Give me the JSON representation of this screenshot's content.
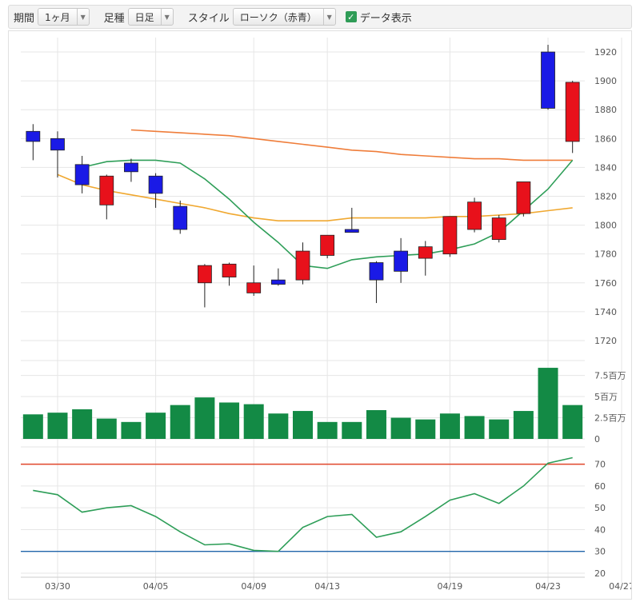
{
  "toolbar": {
    "period_label": "期間",
    "period_value": "1ヶ月",
    "bar_label": "足種",
    "bar_value": "日足",
    "style_label": "スタイル",
    "style_value": "ローソク（赤青）",
    "data_display_label": "データ表示",
    "data_display_checked": true
  },
  "colors": {
    "up": "#e8111b",
    "down": "#1a1ae6",
    "ma_short": "#2e9e58",
    "ma_mid": "#f0a830",
    "ma_long": "#ef7d3a",
    "volume": "#138a45",
    "rsi": "#2e9e58",
    "rsi_upper": "#e0452a",
    "rsi_lower": "#2266aa"
  },
  "chart_data": [
    {
      "type": "candlestick",
      "x_labels": [
        "03/30",
        "04/05",
        "04/09",
        "04/13",
        "04/19",
        "04/23",
        "04/27"
      ],
      "x_label_index": [
        1,
        5,
        9,
        12,
        17,
        21,
        24
      ],
      "yticks": [
        1720,
        1740,
        1760,
        1780,
        1800,
        1820,
        1840,
        1860,
        1880,
        1900,
        1920
      ],
      "ylim": [
        1710,
        1930
      ],
      "candles": [
        {
          "o": 1865,
          "h": 1870,
          "l": 1845,
          "c": 1858
        },
        {
          "o": 1860,
          "h": 1865,
          "l": 1833,
          "c": 1852
        },
        {
          "o": 1842,
          "h": 1848,
          "l": 1822,
          "c": 1828
        },
        {
          "o": 1814,
          "h": 1835,
          "l": 1804,
          "c": 1834
        },
        {
          "o": 1843,
          "h": 1846,
          "l": 1830,
          "c": 1837
        },
        {
          "o": 1834,
          "h": 1836,
          "l": 1812,
          "c": 1822
        },
        {
          "o": 1813,
          "h": 1817,
          "l": 1794,
          "c": 1797
        },
        {
          "o": 1760,
          "h": 1773,
          "l": 1743,
          "c": 1772
        },
        {
          "o": 1764,
          "h": 1774,
          "l": 1758,
          "c": 1773
        },
        {
          "o": 1753,
          "h": 1772,
          "l": 1751,
          "c": 1760
        },
        {
          "o": 1762,
          "h": 1770,
          "l": 1758,
          "c": 1759
        },
        {
          "o": 1762,
          "h": 1788,
          "l": 1759,
          "c": 1782
        },
        {
          "o": 1779,
          "h": 1793,
          "l": 1777,
          "c": 1793
        },
        {
          "o": 1797,
          "h": 1812,
          "l": 1795,
          "c": 1795
        },
        {
          "o": 1774,
          "h": 1775,
          "l": 1746,
          "c": 1762
        },
        {
          "o": 1782,
          "h": 1791,
          "l": 1760,
          "c": 1768
        },
        {
          "o": 1777,
          "h": 1789,
          "l": 1765,
          "c": 1785
        },
        {
          "o": 1780,
          "h": 1806,
          "l": 1778,
          "c": 1806
        },
        {
          "o": 1797,
          "h": 1819,
          "l": 1795,
          "c": 1816
        },
        {
          "o": 1790,
          "h": 1807,
          "l": 1788,
          "c": 1805
        },
        {
          "o": 1808,
          "h": 1830,
          "l": 1806,
          "c": 1830
        },
        {
          "o": 1920,
          "h": 1925,
          "l": 1880,
          "c": 1881
        },
        {
          "o": 1858,
          "h": 1900,
          "l": 1850,
          "c": 1899
        }
      ],
      "ma_short": [
        1840,
        1844,
        1845,
        1845,
        1843,
        1832,
        1818,
        1802,
        1788,
        1772,
        1770,
        1776,
        1778,
        1779,
        1780,
        1783,
        1787,
        1795,
        1810,
        1825,
        1845
      ],
      "ma_mid": [
        1835,
        1828,
        1824,
        1821,
        1818,
        1815,
        1812,
        1808,
        1805,
        1803,
        1803,
        1803,
        1805,
        1805,
        1805,
        1805,
        1806,
        1806,
        1807,
        1808,
        1810,
        1812
      ],
      "ma_long": [
        1866,
        1865,
        1864,
        1863,
        1862,
        1860,
        1858,
        1856,
        1854,
        1852,
        1851,
        1849,
        1848,
        1847,
        1846,
        1846,
        1845,
        1845,
        1845
      ]
    },
    {
      "type": "bar",
      "ytick_labels": [
        "7.5百万",
        "5百万",
        "2.5百万",
        "0"
      ],
      "ylim": [
        0,
        8.5
      ],
      "values": [
        2.9,
        3.1,
        3.5,
        2.4,
        2.0,
        3.1,
        4.0,
        4.9,
        4.3,
        4.1,
        3.0,
        3.3,
        2.0,
        2.0,
        3.4,
        2.5,
        2.3,
        3.0,
        2.7,
        2.3,
        3.3,
        8.4,
        4.0
      ]
    },
    {
      "type": "line",
      "yticks": [
        20,
        30,
        40,
        50,
        60,
        70
      ],
      "ylim": [
        20,
        75
      ],
      "upper_line": 70,
      "lower_line": 30,
      "values": [
        58,
        56,
        48,
        50,
        51,
        46,
        39,
        33,
        33.5,
        30.5,
        30,
        41,
        46,
        47,
        36.5,
        39,
        46,
        53.5,
        56.5,
        52,
        60,
        70.5,
        73
      ]
    }
  ]
}
